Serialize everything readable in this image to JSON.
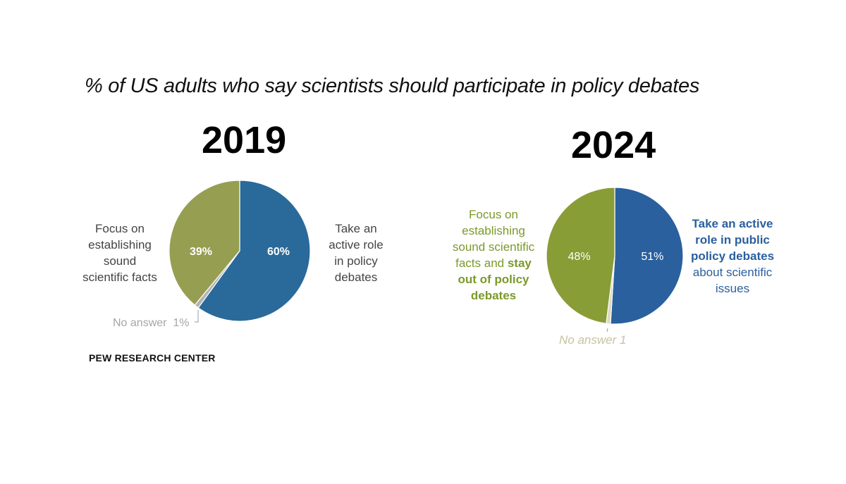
{
  "chart_data": [
    {
      "type": "pie",
      "title": "2019",
      "slices": [
        {
          "label": "Take an active role in policy debates",
          "value": 60,
          "display": "60%",
          "color": "#2a6a9a"
        },
        {
          "label": "No answer",
          "value": 1,
          "display": "1%",
          "color": "#b3b3b3"
        },
        {
          "label": "Focus on establishing sound scientific facts",
          "value": 39,
          "display": "39%",
          "color": "#969e52"
        }
      ],
      "start": "12 o'clock",
      "direction": "clockwise"
    },
    {
      "type": "pie",
      "title": "2024",
      "slices": [
        {
          "label": "Take an active role in public policy debates about scientific issues",
          "value": 51,
          "display": "51%",
          "color": "#2a609e"
        },
        {
          "label": "No answer",
          "value": 1,
          "display": "1",
          "color": "#ddd8c0"
        },
        {
          "label": "Focus on establishing sound scientific facts and stay out of policy debates",
          "value": 48,
          "display": "48%",
          "color": "#889d36"
        }
      ],
      "start": "12 o'clock",
      "direction": "clockwise"
    }
  ],
  "page": {
    "title": "% of US adults who say scientists should participate in policy debates",
    "year_2019": "2019",
    "year_2024": "2024",
    "source": "PEW RESEARCH CENTER"
  },
  "labels_2019": {
    "left": [
      "Focus on",
      "establishing",
      "sound",
      "scientific facts"
    ],
    "right": [
      "Take an",
      "active role",
      "in policy",
      "debates"
    ],
    "no_answer": "No answer  1%"
  },
  "labels_2024": {
    "left_plain": [
      "Focus on",
      "establishing",
      "sound scientific",
      "facts and "
    ],
    "left_bold": [
      "stay",
      "out of policy",
      "debates"
    ],
    "right_bold": [
      "Take an active",
      "role in public",
      "policy debates"
    ],
    "right_plain": [
      "about scientific",
      "issues"
    ],
    "no_answer": "No answer 1"
  }
}
